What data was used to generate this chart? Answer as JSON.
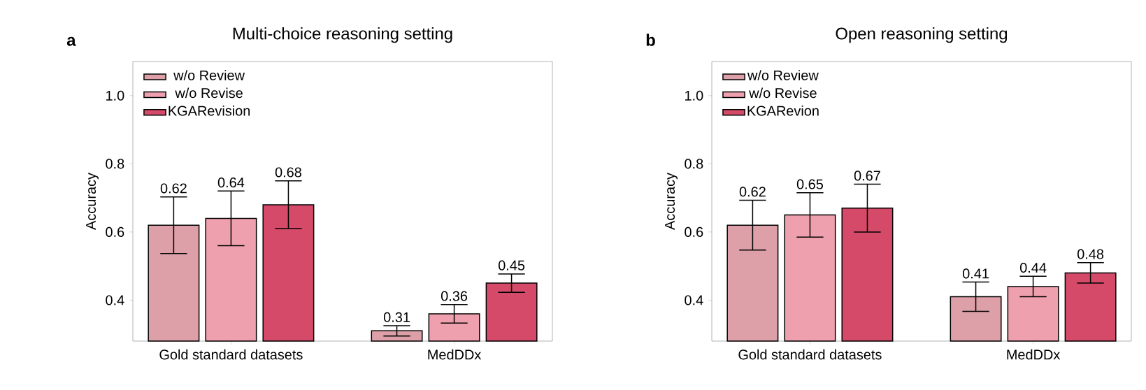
{
  "chart_data": [
    {
      "type": "bar",
      "title": "Multi-choice reasoning setting",
      "ylabel": "Accuracy",
      "annotations": [
        "a"
      ],
      "categories": [
        "Gold standard datasets",
        "MedDDx"
      ],
      "series": [
        {
          "name": "w/o Review",
          "color": "#dda0a8",
          "values": [
            0.62,
            0.31
          ],
          "errors": [
            0.083,
            0.015
          ]
        },
        {
          "name": "w/o Revise",
          "color": "#eea0ae",
          "values": [
            0.64,
            0.36
          ],
          "errors": [
            0.08,
            0.027
          ]
        },
        {
          "name": "KGARevision",
          "color": "#d44a68",
          "values": [
            0.68,
            0.45
          ],
          "errors": [
            0.07,
            0.027
          ]
        }
      ],
      "ylim": [
        0.28,
        1.1
      ],
      "yticks": [
        {
          "value": 0.4,
          "label": "0.4"
        },
        {
          "value": 0.6,
          "label": "0.6"
        },
        {
          "value": 0.8,
          "label": "0.8"
        },
        {
          "value": 1.0,
          "label": "1.0"
        }
      ],
      "legend": "top left",
      "data_labels": true
    },
    {
      "type": "bar",
      "title": "Open reasoning setting",
      "ylabel": "Accuracy",
      "annotations": [
        "b"
      ],
      "categories": [
        "Gold standard datasets",
        "MedDDx"
      ],
      "series": [
        {
          "name": "w/o Review",
          "color": "#dda0a8",
          "values": [
            0.62,
            0.41
          ],
          "errors": [
            0.073,
            0.043
          ]
        },
        {
          "name": "w/o Revise",
          "color": "#eea0ae",
          "values": [
            0.65,
            0.44
          ],
          "errors": [
            0.065,
            0.03
          ]
        },
        {
          "name": "KGARevion",
          "color": "#d44a68",
          "values": [
            0.67,
            0.48
          ],
          "errors": [
            0.07,
            0.03
          ]
        }
      ],
      "ylim": [
        0.28,
        1.1
      ],
      "yticks": [
        {
          "value": 0.4,
          "label": "0.4"
        },
        {
          "value": 0.6,
          "label": "0.6"
        },
        {
          "value": 0.8,
          "label": "0.8"
        },
        {
          "value": 1.0,
          "label": "1.0"
        }
      ],
      "legend": "top left",
      "data_labels": true
    }
  ]
}
